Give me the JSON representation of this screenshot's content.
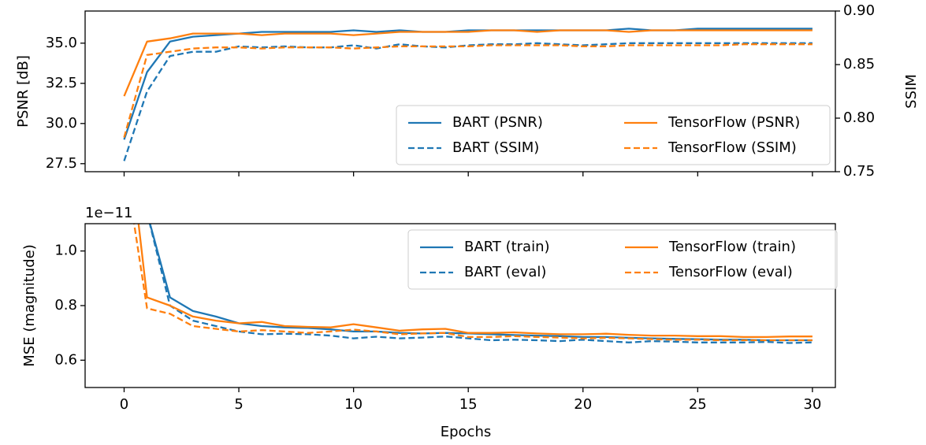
{
  "chart_data": [
    {
      "type": "line",
      "ylabel": "PSNR [dB]",
      "y2label": "SSIM",
      "xlim": [
        -1.7,
        31.0
      ],
      "ylim": [
        27.0,
        37.0
      ],
      "y2lim": [
        0.75,
        0.9
      ],
      "yticks": [
        "27.5",
        "30.0",
        "32.5",
        "35.0"
      ],
      "y2ticks": [
        "0.75",
        "0.80",
        "0.85",
        "0.90"
      ],
      "xticks": [
        0,
        5,
        10,
        15,
        20,
        25,
        30
      ],
      "legend_position": "lower-right",
      "series": [
        {
          "name": "BART (PSNR)",
          "axis": "left",
          "color": "#1f77b4",
          "dash": false,
          "x": [
            0,
            1,
            2,
            3,
            4,
            5,
            6,
            7,
            8,
            9,
            10,
            11,
            12,
            13,
            14,
            15,
            16,
            17,
            18,
            19,
            20,
            21,
            22,
            23,
            24,
            25,
            26,
            27,
            28,
            29,
            30
          ],
          "values": [
            29.0,
            33.2,
            35.1,
            35.4,
            35.5,
            35.6,
            35.7,
            35.7,
            35.7,
            35.7,
            35.8,
            35.7,
            35.8,
            35.7,
            35.7,
            35.8,
            35.8,
            35.8,
            35.8,
            35.8,
            35.8,
            35.8,
            35.9,
            35.8,
            35.8,
            35.9,
            35.9,
            35.9,
            35.9,
            35.9,
            35.9
          ]
        },
        {
          "name": "BART (SSIM)",
          "axis": "right",
          "color": "#1f77b4",
          "dash": true,
          "x": [
            0,
            1,
            2,
            3,
            4,
            5,
            6,
            7,
            8,
            9,
            10,
            11,
            12,
            13,
            14,
            15,
            16,
            17,
            18,
            19,
            20,
            21,
            22,
            23,
            24,
            25,
            26,
            27,
            28,
            29,
            30
          ],
          "values": [
            0.76,
            0.825,
            0.858,
            0.862,
            0.862,
            0.867,
            0.866,
            0.867,
            0.866,
            0.866,
            0.868,
            0.865,
            0.869,
            0.867,
            0.866,
            0.868,
            0.869,
            0.869,
            0.87,
            0.869,
            0.868,
            0.869,
            0.87,
            0.87,
            0.87,
            0.87,
            0.87,
            0.87,
            0.87,
            0.87,
            0.87
          ]
        },
        {
          "name": "TensorFlow (PSNR)",
          "axis": "left",
          "color": "#ff7f0e",
          "dash": false,
          "x": [
            0,
            1,
            2,
            3,
            4,
            5,
            6,
            7,
            8,
            9,
            10,
            11,
            12,
            13,
            14,
            15,
            16,
            17,
            18,
            19,
            20,
            21,
            22,
            23,
            24,
            25,
            26,
            27,
            28,
            29,
            30
          ],
          "values": [
            31.7,
            35.1,
            35.3,
            35.6,
            35.6,
            35.6,
            35.5,
            35.6,
            35.6,
            35.6,
            35.5,
            35.6,
            35.7,
            35.7,
            35.7,
            35.7,
            35.8,
            35.8,
            35.7,
            35.8,
            35.8,
            35.8,
            35.7,
            35.8,
            35.8,
            35.8,
            35.8,
            35.8,
            35.8,
            35.8,
            35.8
          ]
        },
        {
          "name": "TensorFlow (SSIM)",
          "axis": "right",
          "color": "#ff7f0e",
          "dash": true,
          "x": [
            0,
            1,
            2,
            3,
            4,
            5,
            6,
            7,
            8,
            9,
            10,
            11,
            12,
            13,
            14,
            15,
            16,
            17,
            18,
            19,
            20,
            21,
            22,
            23,
            24,
            25,
            26,
            27,
            28,
            29,
            30
          ],
          "values": [
            0.782,
            0.859,
            0.862,
            0.865,
            0.866,
            0.866,
            0.865,
            0.866,
            0.866,
            0.866,
            0.865,
            0.866,
            0.867,
            0.867,
            0.867,
            0.867,
            0.868,
            0.868,
            0.868,
            0.868,
            0.867,
            0.867,
            0.868,
            0.868,
            0.868,
            0.868,
            0.868,
            0.869,
            0.869,
            0.869,
            0.869
          ]
        }
      ]
    },
    {
      "type": "line",
      "xlabel": "Epochs",
      "ylabel": "MSE (magnitude)",
      "scale_label": "1e−11",
      "xlim": [
        -1.7,
        31.0
      ],
      "ylim": [
        0.5,
        1.1
      ],
      "yticks": [
        "0.6",
        "0.8",
        "1.0"
      ],
      "xticks": [
        0,
        5,
        10,
        15,
        20,
        25,
        30
      ],
      "legend_position": "upper-right",
      "series": [
        {
          "name": "BART (train)",
          "color": "#1f77b4",
          "dash": false,
          "x": [
            1,
            2,
            3,
            4,
            5,
            6,
            7,
            8,
            9,
            10,
            11,
            12,
            13,
            14,
            15,
            16,
            17,
            18,
            19,
            20,
            21,
            22,
            23,
            24,
            25,
            26,
            27,
            28,
            29,
            30
          ],
          "values": [
            1.14,
            0.83,
            0.78,
            0.76,
            0.735,
            0.725,
            0.72,
            0.718,
            0.713,
            0.705,
            0.705,
            0.7,
            0.698,
            0.7,
            0.698,
            0.695,
            0.692,
            0.69,
            0.688,
            0.685,
            0.685,
            0.682,
            0.68,
            0.678,
            0.677,
            0.675,
            0.675,
            0.673,
            0.673,
            0.673
          ]
        },
        {
          "name": "BART (eval)",
          "color": "#1f77b4",
          "dash": true,
          "x": [
            1,
            2,
            3,
            4,
            5,
            6,
            7,
            8,
            9,
            10,
            11,
            12,
            13,
            14,
            15,
            16,
            17,
            18,
            19,
            20,
            21,
            22,
            23,
            24,
            25,
            26,
            27,
            28,
            29,
            30
          ],
          "values": [
            1.14,
            0.8,
            0.745,
            0.725,
            0.705,
            0.695,
            0.697,
            0.695,
            0.69,
            0.68,
            0.686,
            0.68,
            0.683,
            0.687,
            0.68,
            0.673,
            0.675,
            0.673,
            0.67,
            0.675,
            0.67,
            0.665,
            0.67,
            0.668,
            0.665,
            0.665,
            0.665,
            0.667,
            0.663,
            0.665
          ]
        },
        {
          "name": "TensorFlow (train)",
          "color": "#ff7f0e",
          "dash": false,
          "x": [
            0.6,
            1,
            2,
            3,
            4,
            5,
            6,
            7,
            8,
            9,
            10,
            11,
            12,
            13,
            14,
            15,
            16,
            17,
            18,
            19,
            20,
            21,
            22,
            23,
            24,
            25,
            26,
            27,
            28,
            29,
            30
          ],
          "values": [
            1.12,
            0.83,
            0.8,
            0.76,
            0.745,
            0.735,
            0.74,
            0.725,
            0.722,
            0.72,
            0.732,
            0.72,
            0.708,
            0.713,
            0.715,
            0.7,
            0.7,
            0.702,
            0.698,
            0.695,
            0.695,
            0.697,
            0.693,
            0.69,
            0.69,
            0.688,
            0.688,
            0.685,
            0.685,
            0.687,
            0.687
          ]
        },
        {
          "name": "TensorFlow (eval)",
          "color": "#ff7f0e",
          "dash": true,
          "x": [
            0.4,
            1,
            2,
            3,
            4,
            5,
            6,
            7,
            8,
            9,
            10,
            11,
            12,
            13,
            14,
            15,
            16,
            17,
            18,
            19,
            20,
            21,
            22,
            23,
            24,
            25,
            26,
            27,
            28,
            29,
            30
          ],
          "values": [
            1.12,
            0.79,
            0.77,
            0.725,
            0.715,
            0.705,
            0.71,
            0.705,
            0.7,
            0.705,
            0.712,
            0.705,
            0.695,
            0.698,
            0.7,
            0.685,
            0.685,
            0.688,
            0.685,
            0.683,
            0.68,
            0.682,
            0.68,
            0.677,
            0.675,
            0.675,
            0.673,
            0.673,
            0.673,
            0.673,
            0.673
          ]
        }
      ]
    }
  ]
}
